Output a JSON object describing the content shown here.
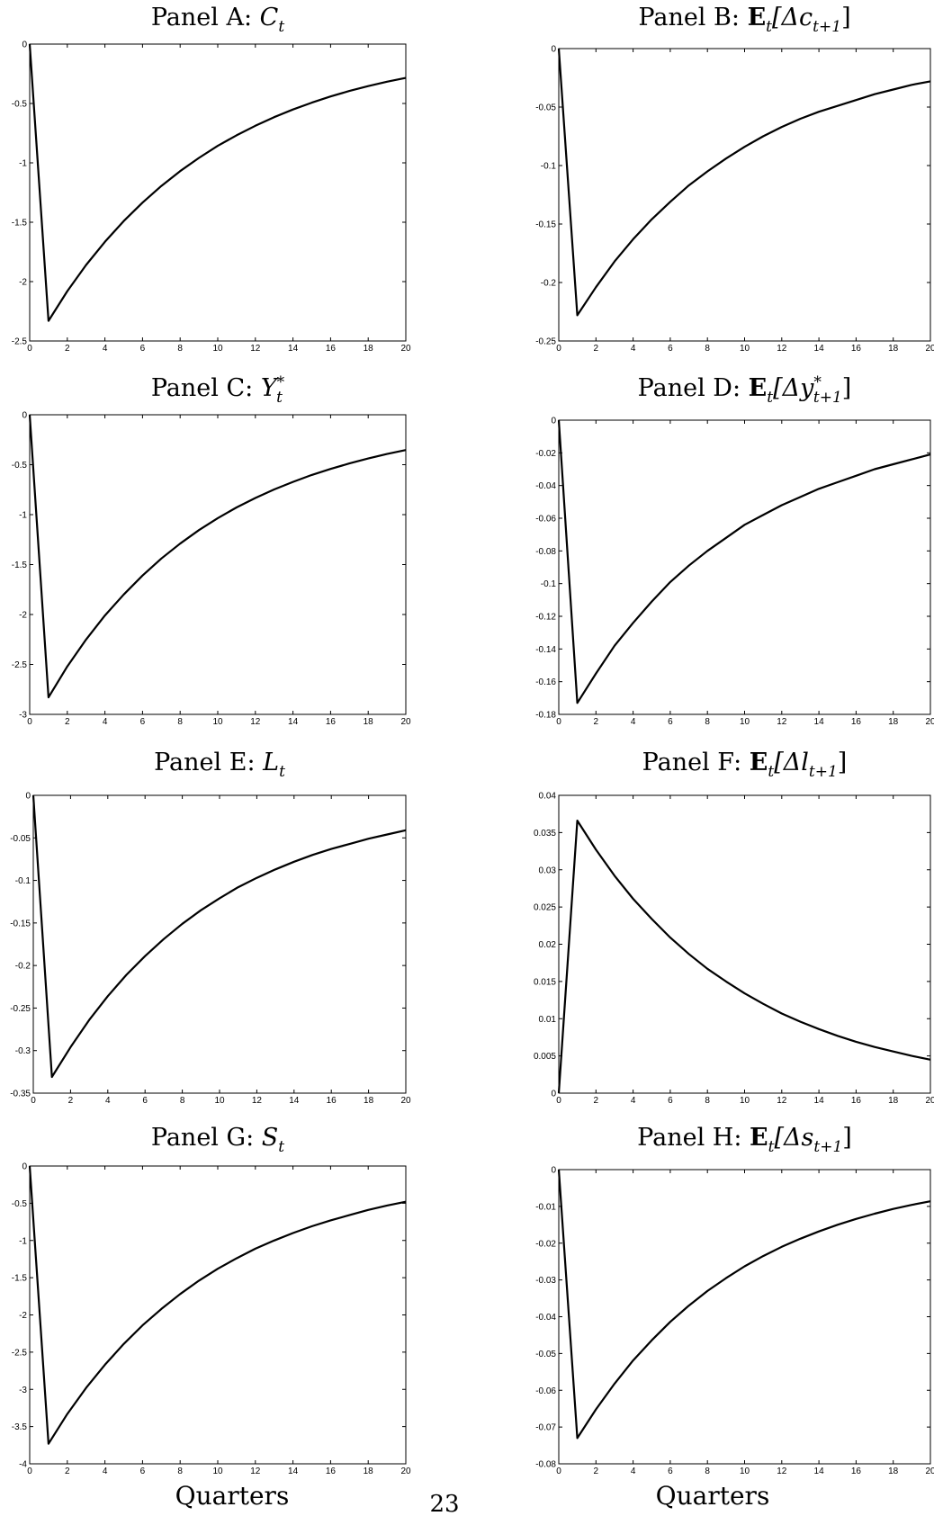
{
  "page": {
    "page_number": "23",
    "x_axis_label": "Quarters"
  },
  "chart_data": [
    {
      "type": "line",
      "title_prefix": "Panel A: ",
      "title_base": "C",
      "title_sub": "t",
      "title_sup": "",
      "title_open": "",
      "title_close": "",
      "xlabel": "",
      "ylabel": "",
      "xlim": [
        0,
        20
      ],
      "ylim": [
        -2.5,
        0
      ],
      "xticks": [
        0,
        2,
        4,
        6,
        8,
        10,
        12,
        14,
        16,
        18,
        20
      ],
      "xtick_labels": [
        "0",
        "2",
        "4",
        "6",
        "8",
        "10",
        "12",
        "14",
        "16",
        "18",
        "20"
      ],
      "yticks": [
        0,
        -0.5,
        -1,
        -1.5,
        -2,
        -2.5
      ],
      "ytick_labels": [
        "0",
        "-0.5",
        "-1",
        "-1.5",
        "-2",
        "-2.5"
      ],
      "grid": false,
      "x": [
        0,
        1,
        2,
        3,
        4,
        5,
        6,
        7,
        8,
        9,
        10,
        11,
        12,
        13,
        14,
        15,
        16,
        17,
        18,
        19,
        20
      ],
      "values": [
        0,
        -2.33,
        -2.08,
        -1.86,
        -1.665,
        -1.49,
        -1.335,
        -1.195,
        -1.07,
        -0.958,
        -0.857,
        -0.768,
        -0.688,
        -0.615,
        -0.551,
        -0.493,
        -0.441,
        -0.395,
        -0.354,
        -0.317,
        -0.285
      ]
    },
    {
      "type": "line",
      "title_prefix": "Panel B: ",
      "title_base": "E",
      "title_sub": "t",
      "title_sup": "",
      "title_open": "[Δc",
      "title_close": "t+1",
      "title_tail": "]",
      "xlabel": "",
      "ylabel": "",
      "xlim": [
        0,
        20
      ],
      "ylim": [
        -0.25,
        0
      ],
      "xticks": [
        0,
        2,
        4,
        6,
        8,
        10,
        12,
        14,
        16,
        18,
        20
      ],
      "xtick_labels": [
        "0",
        "2",
        "4",
        "6",
        "8",
        "10",
        "12",
        "14",
        "16",
        "18",
        "20"
      ],
      "yticks": [
        0,
        -0.05,
        -0.1,
        -0.15,
        -0.2,
        -0.25
      ],
      "ytick_labels": [
        "0",
        "-0.05",
        "-0.1",
        "-0.15",
        "-0.2",
        "-0.25"
      ],
      "grid": false,
      "x": [
        0,
        1,
        2,
        3,
        4,
        5,
        6,
        7,
        8,
        9,
        10,
        11,
        12,
        13,
        14,
        15,
        16,
        17,
        18,
        19,
        20
      ],
      "values": [
        0,
        -0.228,
        -0.204,
        -0.182,
        -0.163,
        -0.146,
        -0.131,
        -0.117,
        -0.105,
        -0.094,
        -0.084,
        -0.075,
        -0.067,
        -0.06,
        -0.054,
        -0.049,
        -0.044,
        -0.039,
        -0.035,
        -0.031,
        -0.028
      ]
    },
    {
      "type": "line",
      "title_prefix": "Panel C: ",
      "title_base": "Y",
      "title_sub": "t",
      "title_sup": "*",
      "title_open": "",
      "title_close": "",
      "xlabel": "",
      "ylabel": "",
      "xlim": [
        0,
        20
      ],
      "ylim": [
        -3,
        0
      ],
      "xticks": [
        0,
        2,
        4,
        6,
        8,
        10,
        12,
        14,
        16,
        18,
        20
      ],
      "xtick_labels": [
        "0",
        "2",
        "4",
        "6",
        "8",
        "10",
        "12",
        "14",
        "16",
        "18",
        "20"
      ],
      "yticks": [
        0,
        -0.5,
        -1,
        -1.5,
        -2,
        -2.5,
        -3
      ],
      "ytick_labels": [
        "0",
        "-0.5",
        "-1",
        "-1.5",
        "-2",
        "-2.5",
        "-3"
      ],
      "grid": false,
      "x": [
        0,
        1,
        2,
        3,
        4,
        5,
        6,
        7,
        8,
        9,
        10,
        11,
        12,
        13,
        14,
        15,
        16,
        17,
        18,
        19,
        20
      ],
      "values": [
        0,
        -2.83,
        -2.52,
        -2.25,
        -2.01,
        -1.8,
        -1.61,
        -1.44,
        -1.29,
        -1.155,
        -1.035,
        -0.928,
        -0.833,
        -0.748,
        -0.672,
        -0.603,
        -0.542,
        -0.487,
        -0.438,
        -0.393,
        -0.353
      ]
    },
    {
      "type": "line",
      "title_prefix": "Panel D: ",
      "title_base": "E",
      "title_sub": "t",
      "title_sup": "",
      "title_open": "[Δy",
      "title_open_sup": "*",
      "title_close": "t+1",
      "title_tail": "]",
      "xlabel": "",
      "ylabel": "",
      "xlim": [
        0,
        20
      ],
      "ylim": [
        -0.18,
        0
      ],
      "xticks": [
        0,
        2,
        4,
        6,
        8,
        10,
        12,
        14,
        16,
        18,
        20
      ],
      "xtick_labels": [
        "0",
        "2",
        "4",
        "6",
        "8",
        "10",
        "12",
        "14",
        "16",
        "18",
        "20"
      ],
      "yticks": [
        0,
        -0.02,
        -0.04,
        -0.06,
        -0.08,
        -0.1,
        -0.12,
        -0.14,
        -0.16,
        -0.18
      ],
      "ytick_labels": [
        "0",
        "-0.02",
        "-0.04",
        "-0.06",
        "-0.08",
        "-0.1",
        "-0.12",
        "-0.14",
        "-0.16",
        "-0.18"
      ],
      "grid": false,
      "x": [
        0,
        1,
        2,
        3,
        4,
        5,
        6,
        7,
        8,
        9,
        10,
        11,
        12,
        13,
        14,
        15,
        16,
        17,
        18,
        19,
        20
      ],
      "values": [
        0,
        -0.173,
        -0.155,
        -0.138,
        -0.124,
        -0.111,
        -0.099,
        -0.089,
        -0.08,
        -0.072,
        -0.064,
        -0.058,
        -0.052,
        -0.047,
        -0.042,
        -0.038,
        -0.034,
        -0.03,
        -0.027,
        -0.024,
        -0.021
      ]
    },
    {
      "type": "line",
      "title_prefix": "Panel E: ",
      "title_base": "L",
      "title_sub": "t",
      "title_sup": "",
      "title_open": "",
      "title_close": "",
      "xlabel": "",
      "ylabel": "",
      "xlim": [
        0,
        20
      ],
      "ylim": [
        -0.35,
        0
      ],
      "xticks": [
        0,
        2,
        4,
        6,
        8,
        10,
        12,
        14,
        16,
        18,
        20
      ],
      "xtick_labels": [
        "0",
        "2",
        "4",
        "6",
        "8",
        "10",
        "12",
        "14",
        "16",
        "18",
        "20"
      ],
      "yticks": [
        0,
        -0.05,
        -0.1,
        -0.15,
        -0.2,
        -0.25,
        -0.3,
        -0.35
      ],
      "ytick_labels": [
        "0",
        "-0.05",
        "-0.1",
        "-0.15",
        "-0.2",
        "-0.25",
        "-0.3",
        "-0.35"
      ],
      "grid": false,
      "x": [
        0,
        1,
        2,
        3,
        4,
        5,
        6,
        7,
        8,
        9,
        10,
        11,
        12,
        13,
        14,
        15,
        16,
        17,
        18,
        19,
        20
      ],
      "values": [
        0,
        -0.331,
        -0.296,
        -0.264,
        -0.236,
        -0.211,
        -0.189,
        -0.169,
        -0.151,
        -0.135,
        -0.121,
        -0.108,
        -0.097,
        -0.087,
        -0.078,
        -0.07,
        -0.063,
        -0.057,
        -0.051,
        -0.046,
        -0.041
      ]
    },
    {
      "type": "line",
      "title_prefix": "Panel F: ",
      "title_base": "E",
      "title_sub": "t",
      "title_sup": "",
      "title_open": "[Δl",
      "title_close": "t+1",
      "title_tail": "]",
      "xlabel": "",
      "ylabel": "",
      "xlim": [
        0,
        20
      ],
      "ylim": [
        0,
        0.04
      ],
      "xticks": [
        0,
        2,
        4,
        6,
        8,
        10,
        12,
        14,
        16,
        18,
        20
      ],
      "xtick_labels": [
        "0",
        "2",
        "4",
        "6",
        "8",
        "10",
        "12",
        "14",
        "16",
        "18",
        "20"
      ],
      "yticks": [
        0,
        0.005,
        0.01,
        0.015,
        0.02,
        0.025,
        0.03,
        0.035,
        0.04
      ],
      "ytick_labels": [
        "0",
        "0.005",
        "0.01",
        "0.015",
        "0.02",
        "0.025",
        "0.03",
        "0.035",
        "0.04"
      ],
      "grid": false,
      "x": [
        0,
        1,
        2,
        3,
        4,
        5,
        6,
        7,
        8,
        9,
        10,
        11,
        12,
        13,
        14,
        15,
        16,
        17,
        18,
        19,
        20
      ],
      "values": [
        0,
        0.0366,
        0.0327,
        0.0292,
        0.0261,
        0.0234,
        0.0209,
        0.0187,
        0.0167,
        0.015,
        0.0134,
        0.012,
        0.0107,
        0.0096,
        0.0086,
        0.0077,
        0.0069,
        0.0062,
        0.0056,
        0.005,
        0.0045
      ]
    },
    {
      "type": "line",
      "title_prefix": "Panel G: ",
      "title_base": "S",
      "title_sub": "t",
      "title_sup": "",
      "title_open": "",
      "title_close": "",
      "xlabel": "",
      "ylabel": "",
      "xlim": [
        0,
        20
      ],
      "ylim": [
        -4,
        0
      ],
      "xticks": [
        0,
        2,
        4,
        6,
        8,
        10,
        12,
        14,
        16,
        18,
        20
      ],
      "xtick_labels": [
        "0",
        "2",
        "4",
        "6",
        "8",
        "10",
        "12",
        "14",
        "16",
        "18",
        "20"
      ],
      "yticks": [
        0,
        -0.5,
        -1,
        -1.5,
        -2,
        -2.5,
        -3,
        -3.5,
        -4
      ],
      "ytick_labels": [
        "0",
        "-0.5",
        "-1",
        "-1.5",
        "-2",
        "-2.5",
        "-3",
        "-3.5",
        "-4"
      ],
      "grid": false,
      "x": [
        0,
        1,
        2,
        3,
        4,
        5,
        6,
        7,
        8,
        9,
        10,
        11,
        12,
        13,
        14,
        15,
        16,
        17,
        18,
        19,
        20
      ],
      "values": [
        0,
        -3.73,
        -3.33,
        -2.98,
        -2.67,
        -2.39,
        -2.14,
        -1.92,
        -1.72,
        -1.54,
        -1.38,
        -1.24,
        -1.11,
        -1.0,
        -0.9,
        -0.81,
        -0.73,
        -0.66,
        -0.59,
        -0.53,
        -0.48
      ]
    },
    {
      "type": "line",
      "title_prefix": "Panel H: ",
      "title_base": "E",
      "title_sub": "t",
      "title_sup": "",
      "title_open": "[Δs",
      "title_close": "t+1",
      "title_tail": "]",
      "xlabel": "Quarters",
      "ylabel": "",
      "xlim": [
        0,
        20
      ],
      "ylim": [
        -0.08,
        0
      ],
      "xticks": [
        0,
        2,
        4,
        6,
        8,
        10,
        12,
        14,
        16,
        18,
        20
      ],
      "xtick_labels": [
        "0",
        "2",
        "4",
        "6",
        "8",
        "10",
        "12",
        "14",
        "16",
        "18",
        "20"
      ],
      "yticks": [
        0,
        -0.01,
        -0.02,
        -0.03,
        -0.04,
        -0.05,
        -0.06,
        -0.07,
        -0.08
      ],
      "ytick_labels": [
        "0",
        "-0.01",
        "-0.02",
        "-0.03",
        "-0.04",
        "-0.05",
        "-0.06",
        "-0.07",
        "-0.08"
      ],
      "grid": false,
      "x": [
        0,
        1,
        2,
        3,
        4,
        5,
        6,
        7,
        8,
        9,
        10,
        11,
        12,
        13,
        14,
        15,
        16,
        17,
        18,
        19,
        20
      ],
      "values": [
        0,
        -0.073,
        -0.0652,
        -0.0582,
        -0.0519,
        -0.0464,
        -0.0414,
        -0.037,
        -0.033,
        -0.0295,
        -0.0263,
        -0.0235,
        -0.021,
        -0.0188,
        -0.0168,
        -0.015,
        -0.0134,
        -0.012,
        -0.0107,
        -0.0096,
        -0.0086
      ]
    }
  ]
}
